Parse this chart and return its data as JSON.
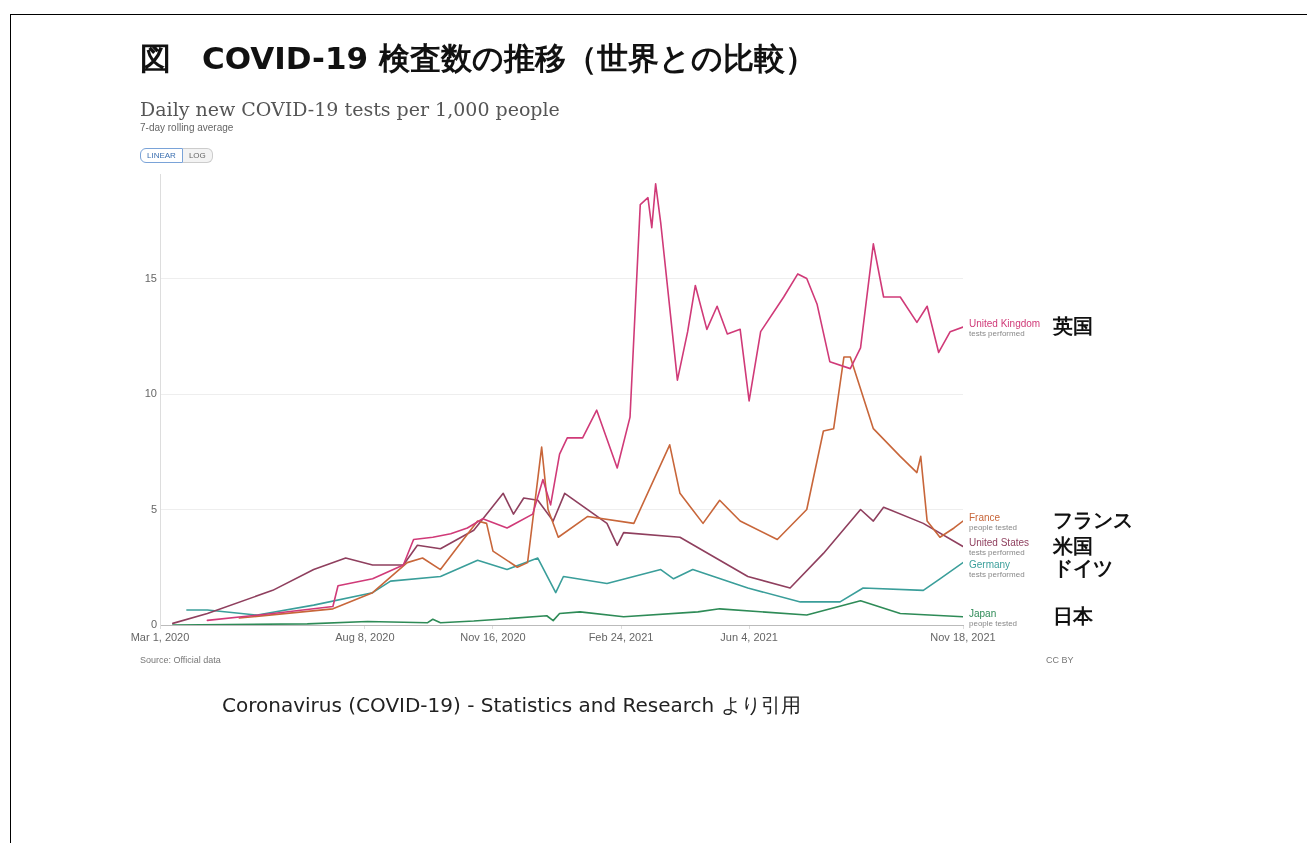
{
  "chart_data": {
    "type": "line",
    "title": "図　COVID-19 検査数の推移（世界との比較）",
    "subtitle": "Daily new COVID-19 tests per 1,000 people",
    "xlim": [
      "2020-03-01",
      "2021-11-18"
    ],
    "xticks": [
      {
        "value": "2020-03-01",
        "label": "Mar 1, 2020"
      },
      {
        "value": "2020-08-08",
        "label": "Aug 8, 2020"
      },
      {
        "value": "2020-11-16",
        "label": "Nov 16, 2020"
      },
      {
        "value": "2021-02-24",
        "label": "Feb 24, 2021"
      },
      {
        "value": "2021-06-04",
        "label": "Jun 4, 2021"
      },
      {
        "value": "2021-11-18",
        "label": "Nov 18, 2021"
      }
    ],
    "ylim": [
      0,
      19.5
    ],
    "yticks": [
      0,
      5,
      10,
      15
    ],
    "grid": "y",
    "legend": false,
    "marker": "none",
    "line_style": "solid",
    "series": [
      {
        "name": "United Kingdom",
        "color": "#d03a78",
        "x": [
          "2020-04-07",
          "2020-05-28",
          "2020-07-14",
          "2020-07-18",
          "2020-08-14",
          "2020-09-07",
          "2020-09-15",
          "2020-09-30",
          "2020-10-14",
          "2020-10-27",
          "2020-11-08",
          "2020-11-27",
          "2020-12-17",
          "2020-12-25",
          "2020-12-31",
          "2021-01-07",
          "2021-01-13",
          "2021-01-25",
          "2021-02-05",
          "2021-02-21",
          "2021-03-03",
          "2021-03-11",
          "2021-03-17",
          "2021-03-20",
          "2021-03-23",
          "2021-03-27",
          "2021-04-09",
          "2021-04-17",
          "2021-04-23",
          "2021-05-02",
          "2021-05-10",
          "2021-05-18",
          "2021-05-28",
          "2021-06-04",
          "2021-06-13",
          "2021-07-01",
          "2021-07-12",
          "2021-07-19",
          "2021-07-27",
          "2021-08-06",
          "2021-08-22",
          "2021-08-30",
          "2021-09-09",
          "2021-09-17",
          "2021-09-30",
          "2021-10-13",
          "2021-10-21",
          "2021-10-30",
          "2021-11-08",
          "2021-11-18"
        ],
        "values": [
          0.2,
          0.5,
          0.8,
          1.7,
          2.0,
          2.6,
          3.7,
          3.8,
          3.95,
          4.2,
          4.6,
          4.2,
          4.8,
          6.3,
          5.2,
          7.4,
          8.1,
          8.1,
          9.3,
          6.8,
          9.0,
          18.2,
          18.5,
          17.2,
          19.1,
          17.4,
          10.6,
          12.7,
          14.7,
          12.8,
          13.8,
          12.6,
          12.8,
          9.7,
          12.7,
          14.2,
          15.2,
          15.0,
          13.9,
          11.4,
          11.1,
          12.0,
          16.5,
          14.2,
          14.2,
          13.1,
          13.8,
          11.8,
          12.7,
          12.9
        ]
      },
      {
        "name": "France",
        "color": "#c8663a",
        "x": [
          "2020-05-02",
          "2020-07-14",
          "2020-08-14",
          "2020-09-10",
          "2020-09-22",
          "2020-10-06",
          "2020-10-21",
          "2020-11-04",
          "2020-11-11",
          "2020-11-16",
          "2020-12-05",
          "2020-12-13",
          "2020-12-24",
          "2020-12-29",
          "2021-01-06",
          "2021-01-29",
          "2021-03-06",
          "2021-04-03",
          "2021-04-11",
          "2021-04-29",
          "2021-05-12",
          "2021-05-28",
          "2021-06-26",
          "2021-07-19",
          "2021-08-01",
          "2021-08-09",
          "2021-08-17",
          "2021-08-22",
          "2021-09-09",
          "2021-09-30",
          "2021-10-13",
          "2021-10-16",
          "2021-10-21",
          "2021-10-31",
          "2021-11-11",
          "2021-11-18"
        ],
        "values": [
          0.3,
          0.7,
          1.4,
          2.7,
          2.9,
          2.4,
          3.5,
          4.5,
          4.4,
          3.2,
          2.5,
          2.7,
          7.7,
          5.0,
          3.8,
          4.7,
          4.4,
          7.8,
          5.7,
          4.4,
          5.4,
          4.5,
          3.7,
          5.0,
          8.4,
          8.5,
          11.6,
          11.6,
          8.5,
          7.3,
          6.6,
          7.3,
          4.5,
          3.8,
          4.2,
          4.5
        ]
      },
      {
        "name": "United States",
        "color": "#8f3f5e",
        "x": [
          "2020-03-11",
          "2020-04-07",
          "2020-05-28",
          "2020-06-29",
          "2020-07-24",
          "2020-08-14",
          "2020-09-07",
          "2020-09-18",
          "2020-10-06",
          "2020-11-01",
          "2020-11-24",
          "2020-12-02",
          "2020-12-10",
          "2020-12-21",
          "2021-01-02",
          "2021-01-11",
          "2021-02-13",
          "2021-02-21",
          "2021-02-26",
          "2021-04-11",
          "2021-06-03",
          "2021-07-06",
          "2021-08-01",
          "2021-08-30",
          "2021-09-09",
          "2021-09-17",
          "2021-10-18",
          "2021-11-18"
        ],
        "values": [
          0.07,
          0.5,
          1.5,
          2.4,
          2.9,
          2.6,
          2.6,
          3.45,
          3.3,
          4.1,
          5.7,
          4.8,
          5.5,
          5.4,
          4.5,
          5.7,
          4.4,
          3.45,
          4.0,
          3.8,
          2.1,
          1.6,
          3.1,
          5.0,
          4.5,
          5.1,
          4.4,
          3.4
        ]
      },
      {
        "name": "Germany",
        "color": "#3a9e9a",
        "x": [
          "2020-03-22",
          "2020-04-07",
          "2020-05-16",
          "2020-06-29",
          "2020-08-14",
          "2020-08-28",
          "2020-10-06",
          "2020-11-04",
          "2020-11-27",
          "2020-12-21",
          "2021-01-04",
          "2021-01-10",
          "2021-02-13",
          "2021-03-27",
          "2021-04-06",
          "2021-04-21",
          "2021-06-03",
          "2021-07-14",
          "2021-08-14",
          "2021-09-01",
          "2021-10-18",
          "2021-10-31",
          "2021-11-18"
        ],
        "values": [
          0.65,
          0.65,
          0.43,
          0.86,
          1.4,
          1.9,
          2.1,
          2.8,
          2.4,
          2.9,
          1.4,
          2.1,
          1.8,
          2.4,
          2.0,
          2.4,
          1.6,
          1.0,
          1.0,
          1.6,
          1.5,
          2.0,
          2.7
        ]
      },
      {
        "name": "Japan",
        "color": "#2e8b57",
        "x": [
          "2020-03-11",
          "2020-06-24",
          "2020-08-10",
          "2020-09-26",
          "2020-09-30",
          "2020-10-06",
          "2020-11-01",
          "2020-12-28",
          "2021-01-02",
          "2021-01-07",
          "2021-01-23",
          "2021-02-26",
          "2021-04-25",
          "2021-05-12",
          "2021-07-19",
          "2021-08-30",
          "2021-09-30",
          "2021-11-18"
        ],
        "values": [
          0,
          0.05,
          0.15,
          0.1,
          0.25,
          0.1,
          0.17,
          0.4,
          0.19,
          0.5,
          0.57,
          0.36,
          0.57,
          0.7,
          0.43,
          1.05,
          0.5,
          0.36
        ]
      }
    ],
    "annotations": [
      "7-day rolling average",
      "LINEAR",
      "LOG",
      "tests performed",
      "people tested",
      "tests performed",
      "tests performed",
      "people tested",
      "Source: Official data",
      "CC BY",
      "Coronavirus (COVID-19)  - Statistics and Research より引用",
      "英国",
      "フランス",
      "米国",
      "ドイツ",
      "日本"
    ]
  }
}
